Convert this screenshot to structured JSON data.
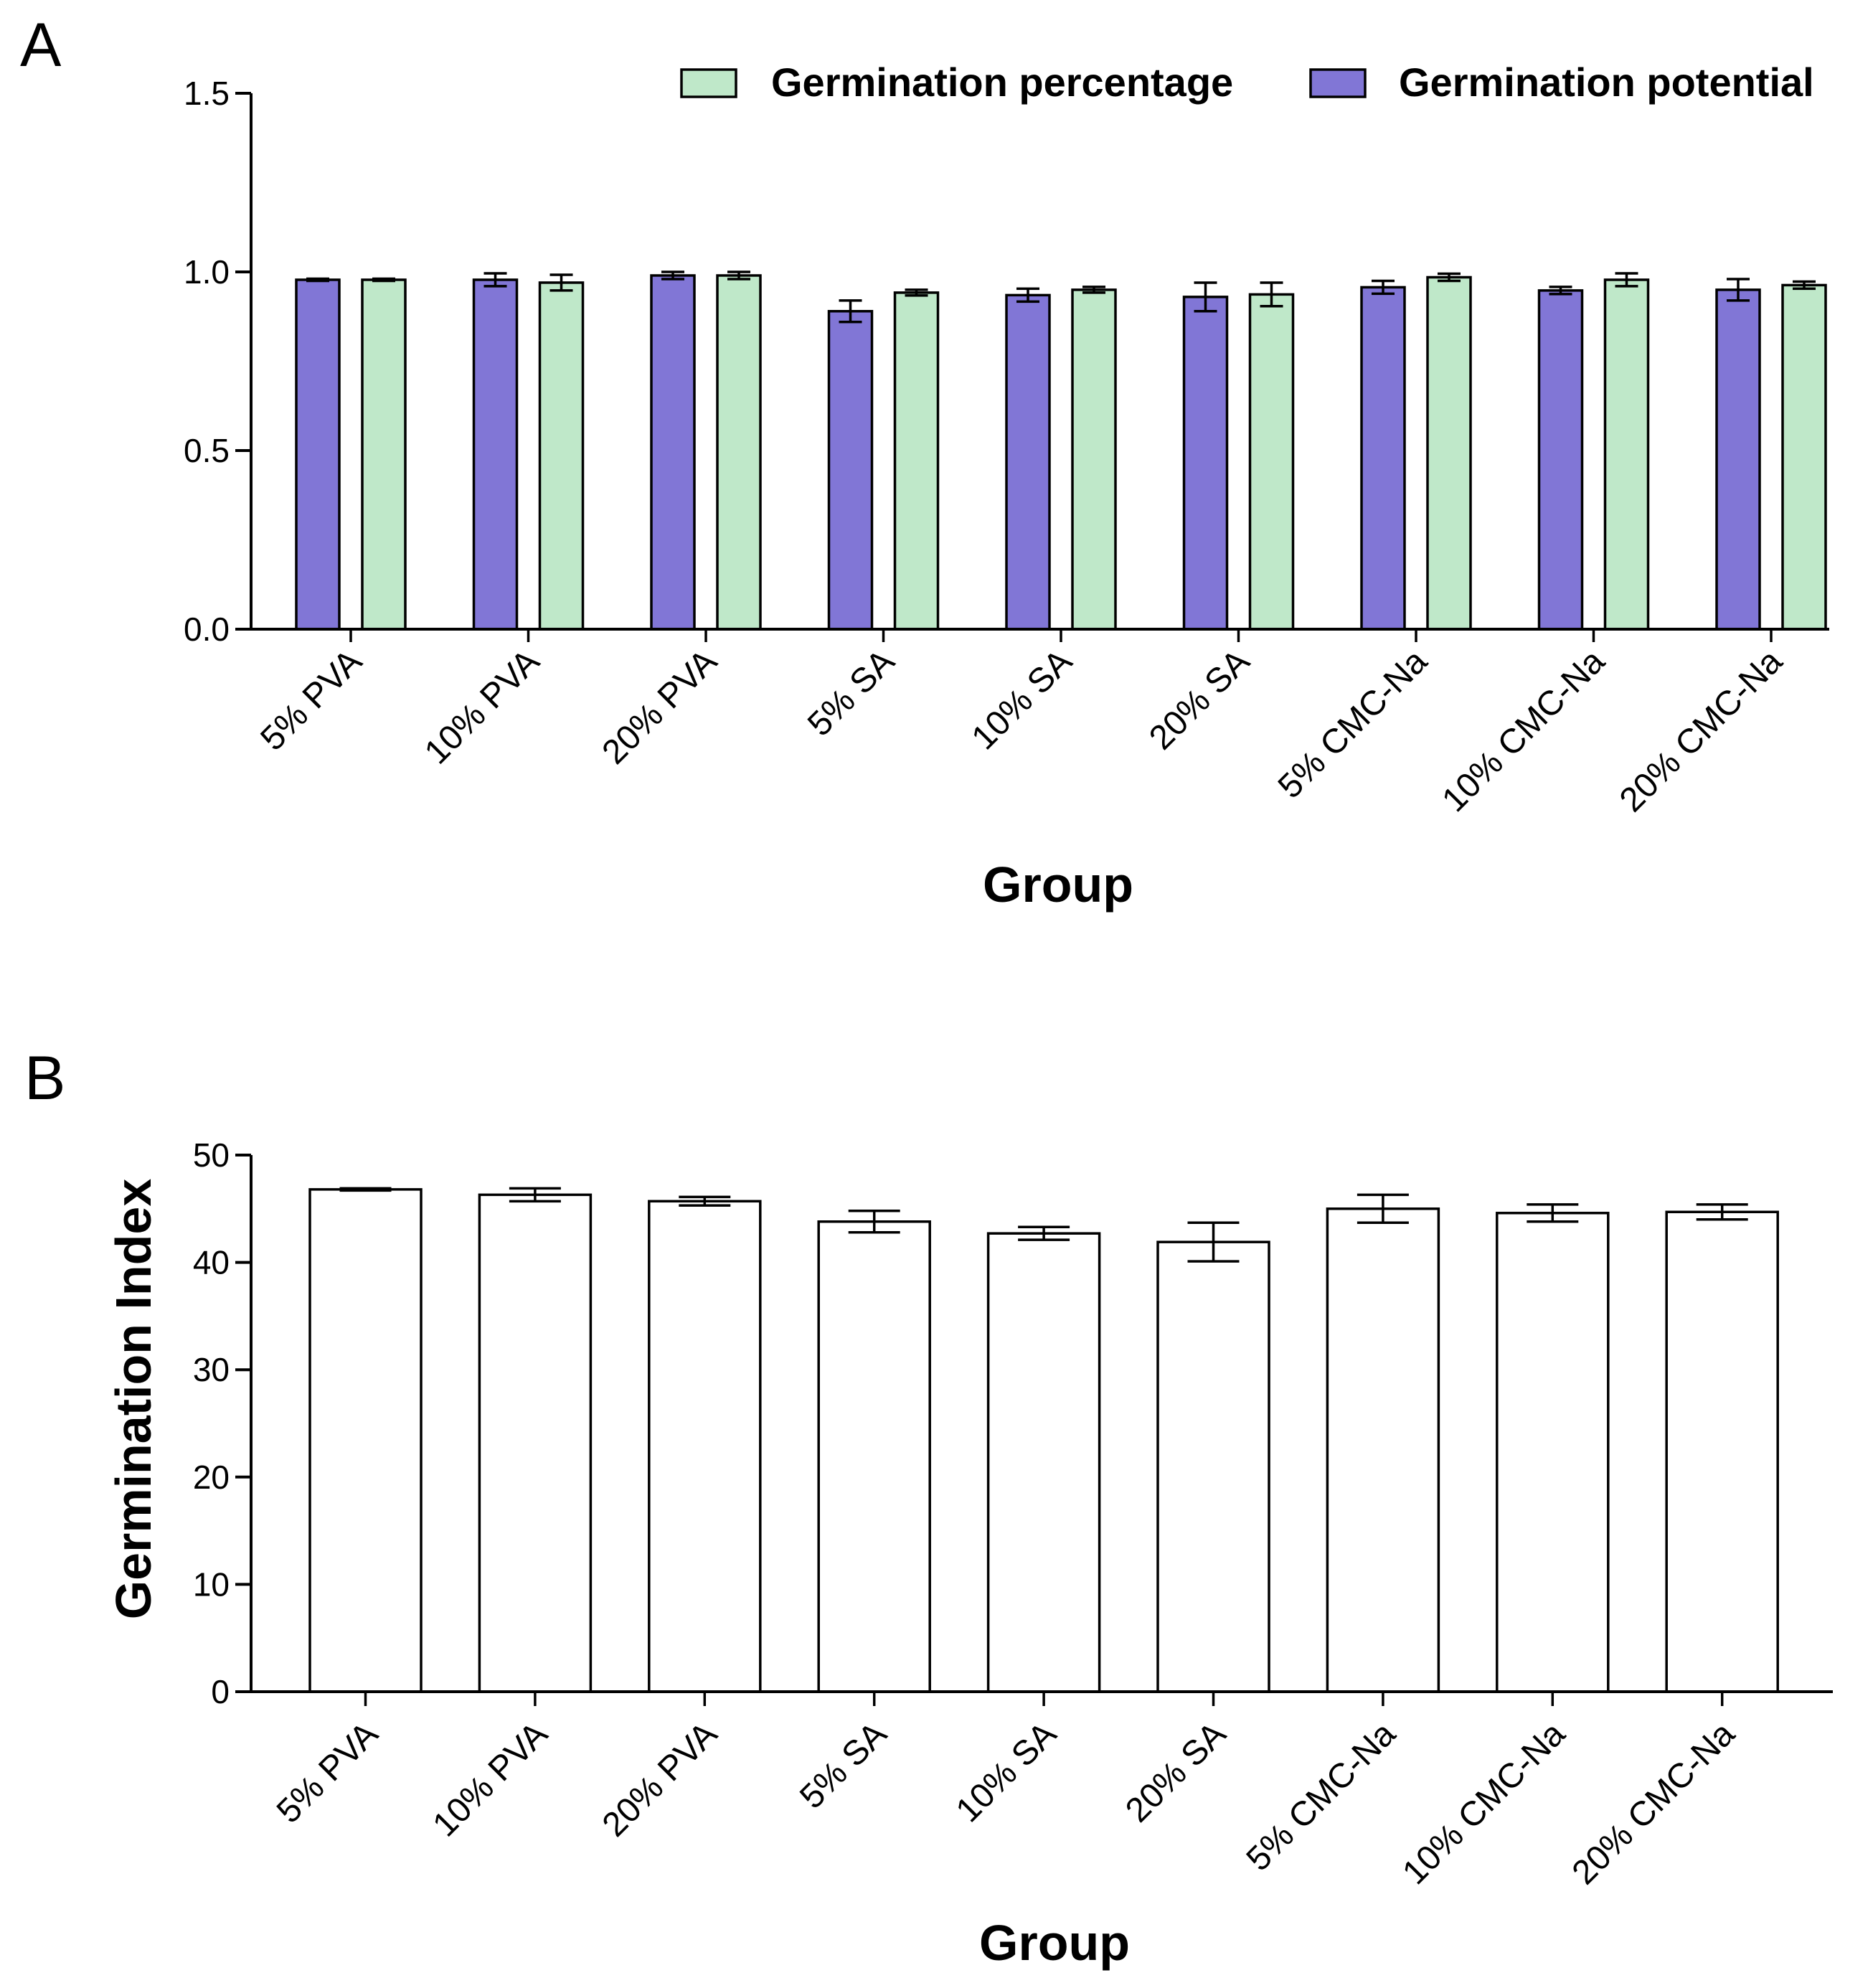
{
  "chart_data": [
    {
      "panel": "A",
      "type": "bar",
      "categories": [
        "5% PVA",
        "10% PVA",
        "20% PVA",
        "5% SA",
        "10% SA",
        "20% SA",
        "5% CMC-Na",
        "10% CMC-Na",
        "20% CMC-Na"
      ],
      "series": [
        {
          "name": "Germination potential",
          "color": "#8176D6",
          "values": [
            0.978,
            0.978,
            0.99,
            0.89,
            0.935,
            0.93,
            0.957,
            0.948,
            0.95
          ],
          "errors": [
            0.003,
            0.018,
            0.01,
            0.03,
            0.018,
            0.04,
            0.018,
            0.01,
            0.03
          ]
        },
        {
          "name": "Germination percentage",
          "color": "#BFE8C9",
          "values": [
            0.978,
            0.97,
            0.99,
            0.942,
            0.95,
            0.937,
            0.985,
            0.978,
            0.963
          ],
          "errors": [
            0.003,
            0.022,
            0.01,
            0.008,
            0.008,
            0.033,
            0.01,
            0.018,
            0.01
          ]
        }
      ],
      "legend_order": [
        "Germination percentage",
        "Germination potential"
      ],
      "legend_position": "top-right",
      "xlabel": "Group",
      "ylabel": "",
      "ylim": [
        0,
        1.5
      ],
      "yticks": [
        0,
        0.5,
        1.0,
        1.5
      ],
      "ytick_labels": [
        "0.0",
        "0.5",
        "1.0",
        "1.5"
      ],
      "grid": false
    },
    {
      "panel": "B",
      "type": "bar",
      "categories": [
        "5% PVA",
        "10% PVA",
        "20% PVA",
        "5% SA",
        "10% SA",
        "20% SA",
        "5% CMC-Na",
        "10% CMC-Na",
        "20% CMC-Na"
      ],
      "series": [
        {
          "name": "Germination Index",
          "color": "#FFFFFF",
          "values": [
            46.8,
            46.3,
            45.7,
            43.8,
            42.7,
            41.9,
            45.0,
            44.6,
            44.7
          ],
          "errors": [
            0.1,
            0.6,
            0.4,
            1.0,
            0.6,
            1.8,
            1.3,
            0.8,
            0.7
          ]
        }
      ],
      "xlabel": "Group",
      "ylabel": "Germination Index",
      "ylim": [
        0,
        50
      ],
      "yticks": [
        0,
        10,
        20,
        30,
        40,
        50
      ],
      "ytick_labels": [
        "0",
        "10",
        "20",
        "30",
        "40",
        "50"
      ],
      "grid": false
    }
  ]
}
